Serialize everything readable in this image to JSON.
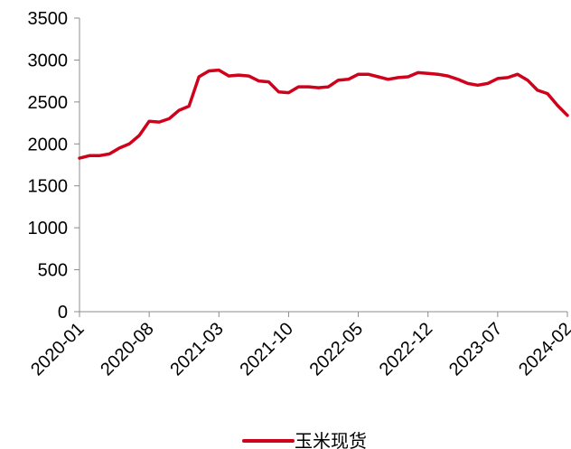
{
  "chart_data": {
    "type": "line",
    "title": "",
    "xlabel": "",
    "ylabel": "",
    "ylim": [
      0,
      3500
    ],
    "y_ticks": [
      0,
      500,
      1000,
      1500,
      2000,
      2500,
      3000,
      3500
    ],
    "y_tick_labels": [
      "0",
      "500",
      "1000",
      "1500",
      "2000",
      "2500",
      "3000",
      "3500"
    ],
    "x_range": [
      "2020-01",
      "2024-02"
    ],
    "x_ticks": [
      "2020-01",
      "2020-08",
      "2021-03",
      "2021-10",
      "2022-05",
      "2022-12",
      "2023-07",
      "2024-02"
    ],
    "grid": false,
    "legend": "bottom-center",
    "series": [
      {
        "name": "玉米现货",
        "color": "#d0021b",
        "points": [
          [
            "2020-01",
            1830
          ],
          [
            "2020-02",
            1860
          ],
          [
            "2020-03",
            1860
          ],
          [
            "2020-04",
            1880
          ],
          [
            "2020-05",
            1950
          ],
          [
            "2020-06",
            2000
          ],
          [
            "2020-07",
            2100
          ],
          [
            "2020-08",
            2270
          ],
          [
            "2020-09",
            2260
          ],
          [
            "2020-10",
            2300
          ],
          [
            "2020-11",
            2400
          ],
          [
            "2020-12",
            2450
          ],
          [
            "2021-01",
            2800
          ],
          [
            "2021-02",
            2870
          ],
          [
            "2021-03",
            2880
          ],
          [
            "2021-04",
            2810
          ],
          [
            "2021-05",
            2820
          ],
          [
            "2021-06",
            2810
          ],
          [
            "2021-07",
            2750
          ],
          [
            "2021-08",
            2740
          ],
          [
            "2021-09",
            2620
          ],
          [
            "2021-10",
            2610
          ],
          [
            "2021-11",
            2680
          ],
          [
            "2021-12",
            2680
          ],
          [
            "2022-01",
            2670
          ],
          [
            "2022-02",
            2680
          ],
          [
            "2022-03",
            2760
          ],
          [
            "2022-04",
            2770
          ],
          [
            "2022-05",
            2830
          ],
          [
            "2022-06",
            2830
          ],
          [
            "2022-07",
            2800
          ],
          [
            "2022-08",
            2770
          ],
          [
            "2022-09",
            2790
          ],
          [
            "2022-10",
            2800
          ],
          [
            "2022-11",
            2850
          ],
          [
            "2022-12",
            2840
          ],
          [
            "2023-01",
            2830
          ],
          [
            "2023-02",
            2810
          ],
          [
            "2023-03",
            2770
          ],
          [
            "2023-04",
            2720
          ],
          [
            "2023-05",
            2700
          ],
          [
            "2023-06",
            2720
          ],
          [
            "2023-07",
            2780
          ],
          [
            "2023-08",
            2790
          ],
          [
            "2023-09",
            2830
          ],
          [
            "2023-10",
            2760
          ],
          [
            "2023-11",
            2640
          ],
          [
            "2023-12",
            2600
          ],
          [
            "2024-01",
            2460
          ],
          [
            "2024-02",
            2340
          ]
        ]
      }
    ]
  }
}
